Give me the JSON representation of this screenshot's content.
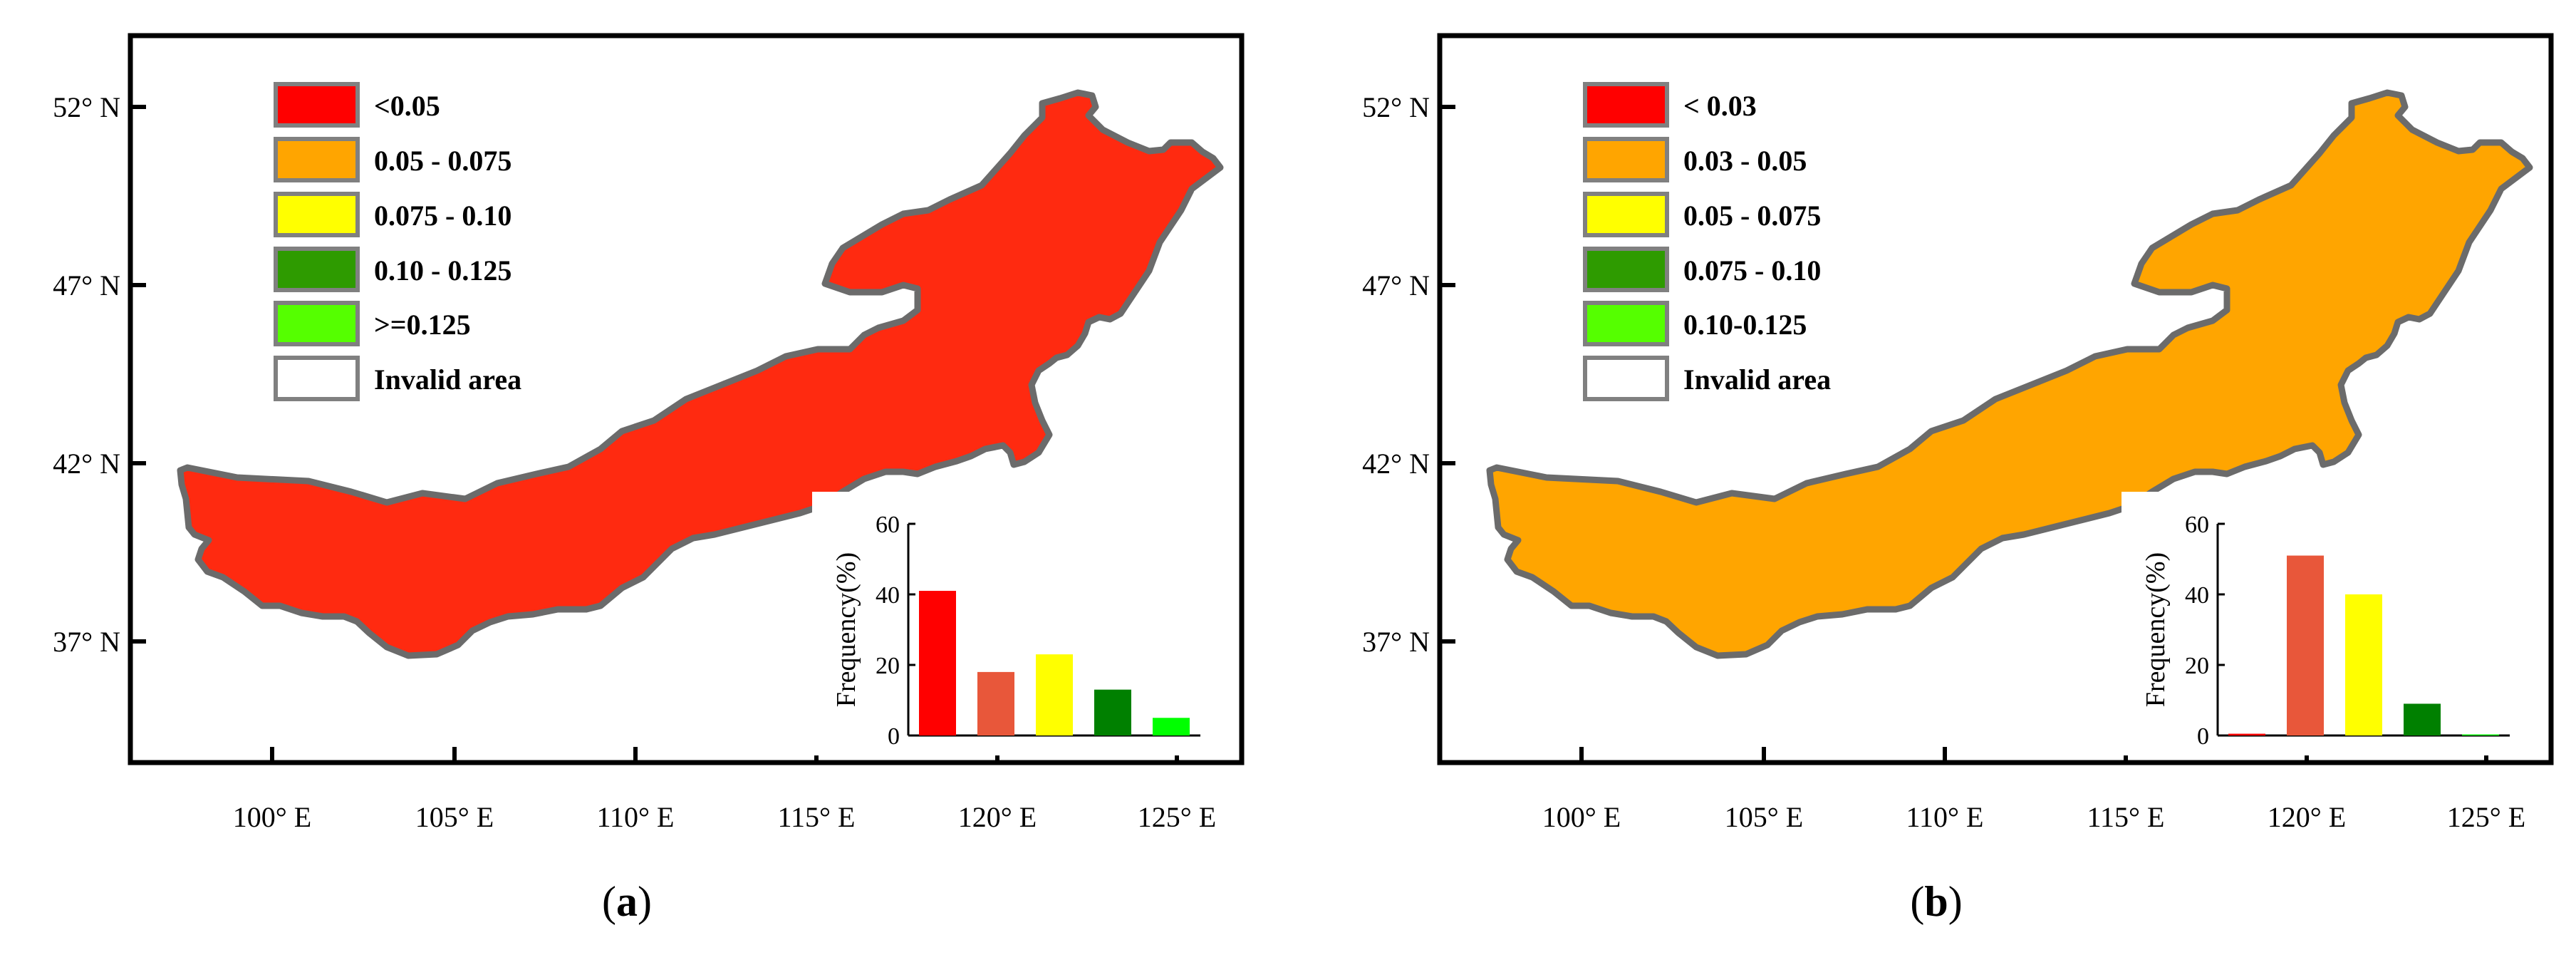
{
  "figure": {
    "panels": [
      {
        "label": "a",
        "lat_ticks": [
          "52° N",
          "47° N",
          "42° N",
          "37° N"
        ],
        "lon_ticks": [
          "100° E",
          "105° E",
          "110° E",
          "115° E",
          "120° E",
          "125° E"
        ],
        "legend": [
          {
            "label": "<0.05",
            "color": "#ff0000"
          },
          {
            "label": "0.05 - 0.075",
            "color": "#ffa500"
          },
          {
            "label": "0.075 - 0.10",
            "color": "#ffff00"
          },
          {
            "label": "0.10 - 0.125",
            "color": "#2e9b00"
          },
          {
            "label": ">=0.125",
            "color": "#55ff00"
          },
          {
            "label": "Invalid area",
            "color": "#ffffff"
          }
        ],
        "region_fill": "#ff2a10",
        "inset": {
          "ylabel": "Frequency(%)",
          "yticks": [
            "60",
            "40",
            "20",
            "0"
          ],
          "ymax": 60,
          "values": [
            41,
            18,
            23,
            13,
            5
          ],
          "colors": [
            "#ff0000",
            "#e8573a",
            "#ffff00",
            "#008000",
            "#00ff00"
          ]
        }
      },
      {
        "label": "b",
        "lat_ticks": [
          "52° N",
          "47° N",
          "42° N",
          "37° N"
        ],
        "lon_ticks": [
          "100° E",
          "105° E",
          "110° E",
          "115° E",
          "120° E",
          "125° E"
        ],
        "legend": [
          {
            "label": "< 0.03",
            "color": "#ff0000"
          },
          {
            "label": "0.03 - 0.05",
            "color": "#ffa500"
          },
          {
            "label": "0.05 - 0.075",
            "color": "#ffff00"
          },
          {
            "label": "0.075 - 0.10",
            "color": "#2e9b00"
          },
          {
            "label": "0.10-0.125",
            "color": "#55ff00"
          },
          {
            "label": "Invalid area",
            "color": "#ffffff"
          }
        ],
        "region_fill": "#ffa500",
        "inset": {
          "ylabel": "Frequency(%)",
          "yticks": [
            "60",
            "40",
            "20",
            "0"
          ],
          "ymax": 60,
          "values": [
            0.5,
            51,
            40,
            9,
            0.3
          ],
          "colors": [
            "#ff0000",
            "#e8573a",
            "#ffff00",
            "#008000",
            "#00ff00"
          ]
        }
      }
    ]
  },
  "chart_data": [
    {
      "type": "bar",
      "title": "",
      "xlabel": "",
      "ylabel": "Frequency(%)",
      "ylim": [
        0,
        60
      ],
      "categories": [
        "<0.05",
        "0.05 - 0.075",
        "0.075 - 0.10",
        "0.10 - 0.125",
        ">=0.125"
      ],
      "values": [
        41,
        18,
        23,
        13,
        5
      ]
    },
    {
      "type": "bar",
      "title": "",
      "xlabel": "",
      "ylabel": "Frequency(%)",
      "ylim": [
        0,
        60
      ],
      "categories": [
        "< 0.03",
        "0.03 - 0.05",
        "0.05 - 0.075",
        "0.075 - 0.10",
        "0.10-0.125"
      ],
      "values": [
        0.5,
        51,
        40,
        9,
        0.3
      ]
    }
  ]
}
